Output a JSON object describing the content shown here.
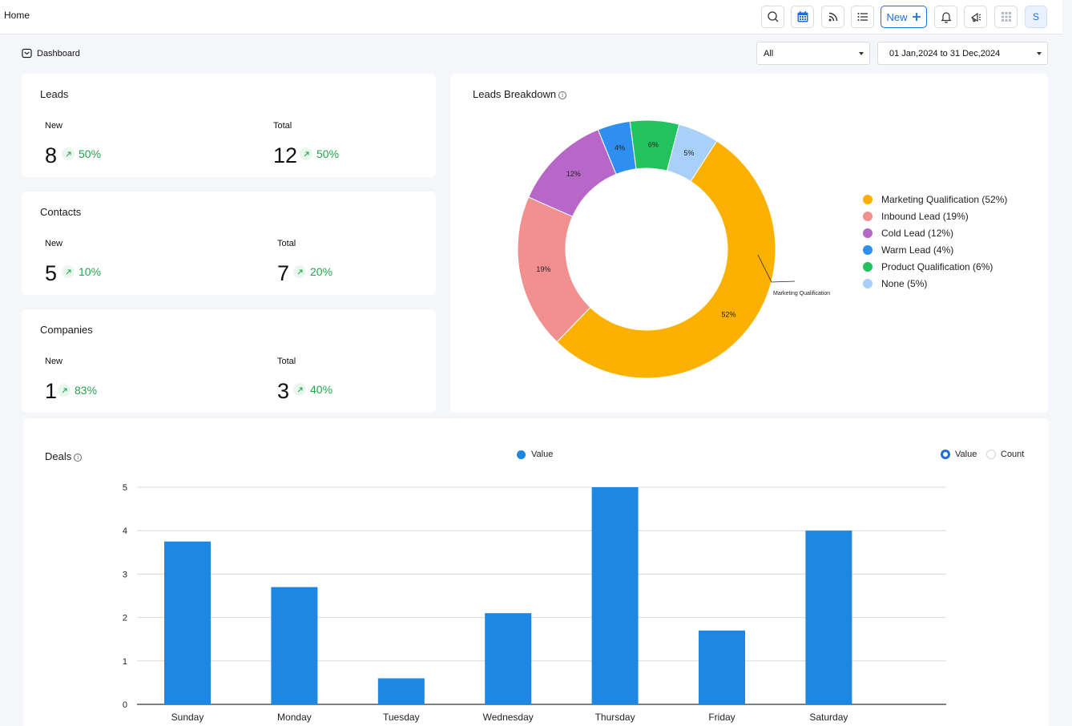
{
  "header": {
    "title": "Home",
    "new_label": "New",
    "avatar_initial": "S"
  },
  "breadcrumb": {
    "label": "Dashboard"
  },
  "filters": {
    "type_selected": "All",
    "date_range": "01 Jan,2024 to 31 Dec,2024"
  },
  "leads": {
    "title": "Leads",
    "new_label": "New",
    "new_value": "8",
    "new_change": "50%",
    "total_label": "Total",
    "total_value": "12",
    "total_change": "50%"
  },
  "contacts": {
    "title": "Contacts",
    "new_label": "New",
    "new_value": "5",
    "new_change": "10%",
    "total_label": "Total",
    "total_value": "7",
    "total_change": "20%"
  },
  "companies": {
    "title": "Companies",
    "new_label": "New",
    "new_value": "1",
    "new_change": "83%",
    "total_label": "Total",
    "total_value": "3",
    "total_change": "40%"
  },
  "leads_breakdown": {
    "title": "Leads Breakdown",
    "callout": "Marketing Qualification",
    "legend": [
      "Marketing Qualification (52%)",
      "Inbound Lead (19%)",
      "Cold Lead (12%)",
      "Warm Lead (4%)",
      "Product Qualification (6%)",
      "None (5%)"
    ]
  },
  "deals": {
    "title": "Deals",
    "legend_label": "Value",
    "toggle_value": "Value",
    "toggle_count": "Count"
  },
  "colors": {
    "accent": "#1f6fd8",
    "positive": "#1fa54a",
    "bar": "#1e86e3"
  },
  "chart_data": [
    {
      "type": "pie",
      "title": "Leads Breakdown",
      "slices": [
        {
          "name": "Marketing Qualification",
          "value": 52,
          "color": "#fcb000"
        },
        {
          "name": "Inbound Lead",
          "value": 19,
          "color": "#f28f8f"
        },
        {
          "name": "Cold Lead",
          "value": 12,
          "color": "#b767c8"
        },
        {
          "name": "Warm Lead",
          "value": 4,
          "color": "#2e8ff0"
        },
        {
          "name": "Product Qualification",
          "value": 6,
          "color": "#22c35e"
        },
        {
          "name": "None",
          "value": 5,
          "color": "#a8d0f8"
        }
      ],
      "legend_position": "right"
    },
    {
      "type": "bar",
      "title": "Deals",
      "categories": [
        "Sunday",
        "Monday",
        "Tuesday",
        "Wednesday",
        "Thursday",
        "Friday",
        "Saturday"
      ],
      "series": [
        {
          "name": "Value",
          "values": [
            3.75,
            2.7,
            0.6,
            2.1,
            5,
            1.7,
            4
          ]
        }
      ],
      "ylim": [
        0,
        5
      ],
      "yticks": [
        0,
        1,
        2,
        3,
        4,
        5
      ],
      "grid": true,
      "legend_position": "top"
    }
  ]
}
